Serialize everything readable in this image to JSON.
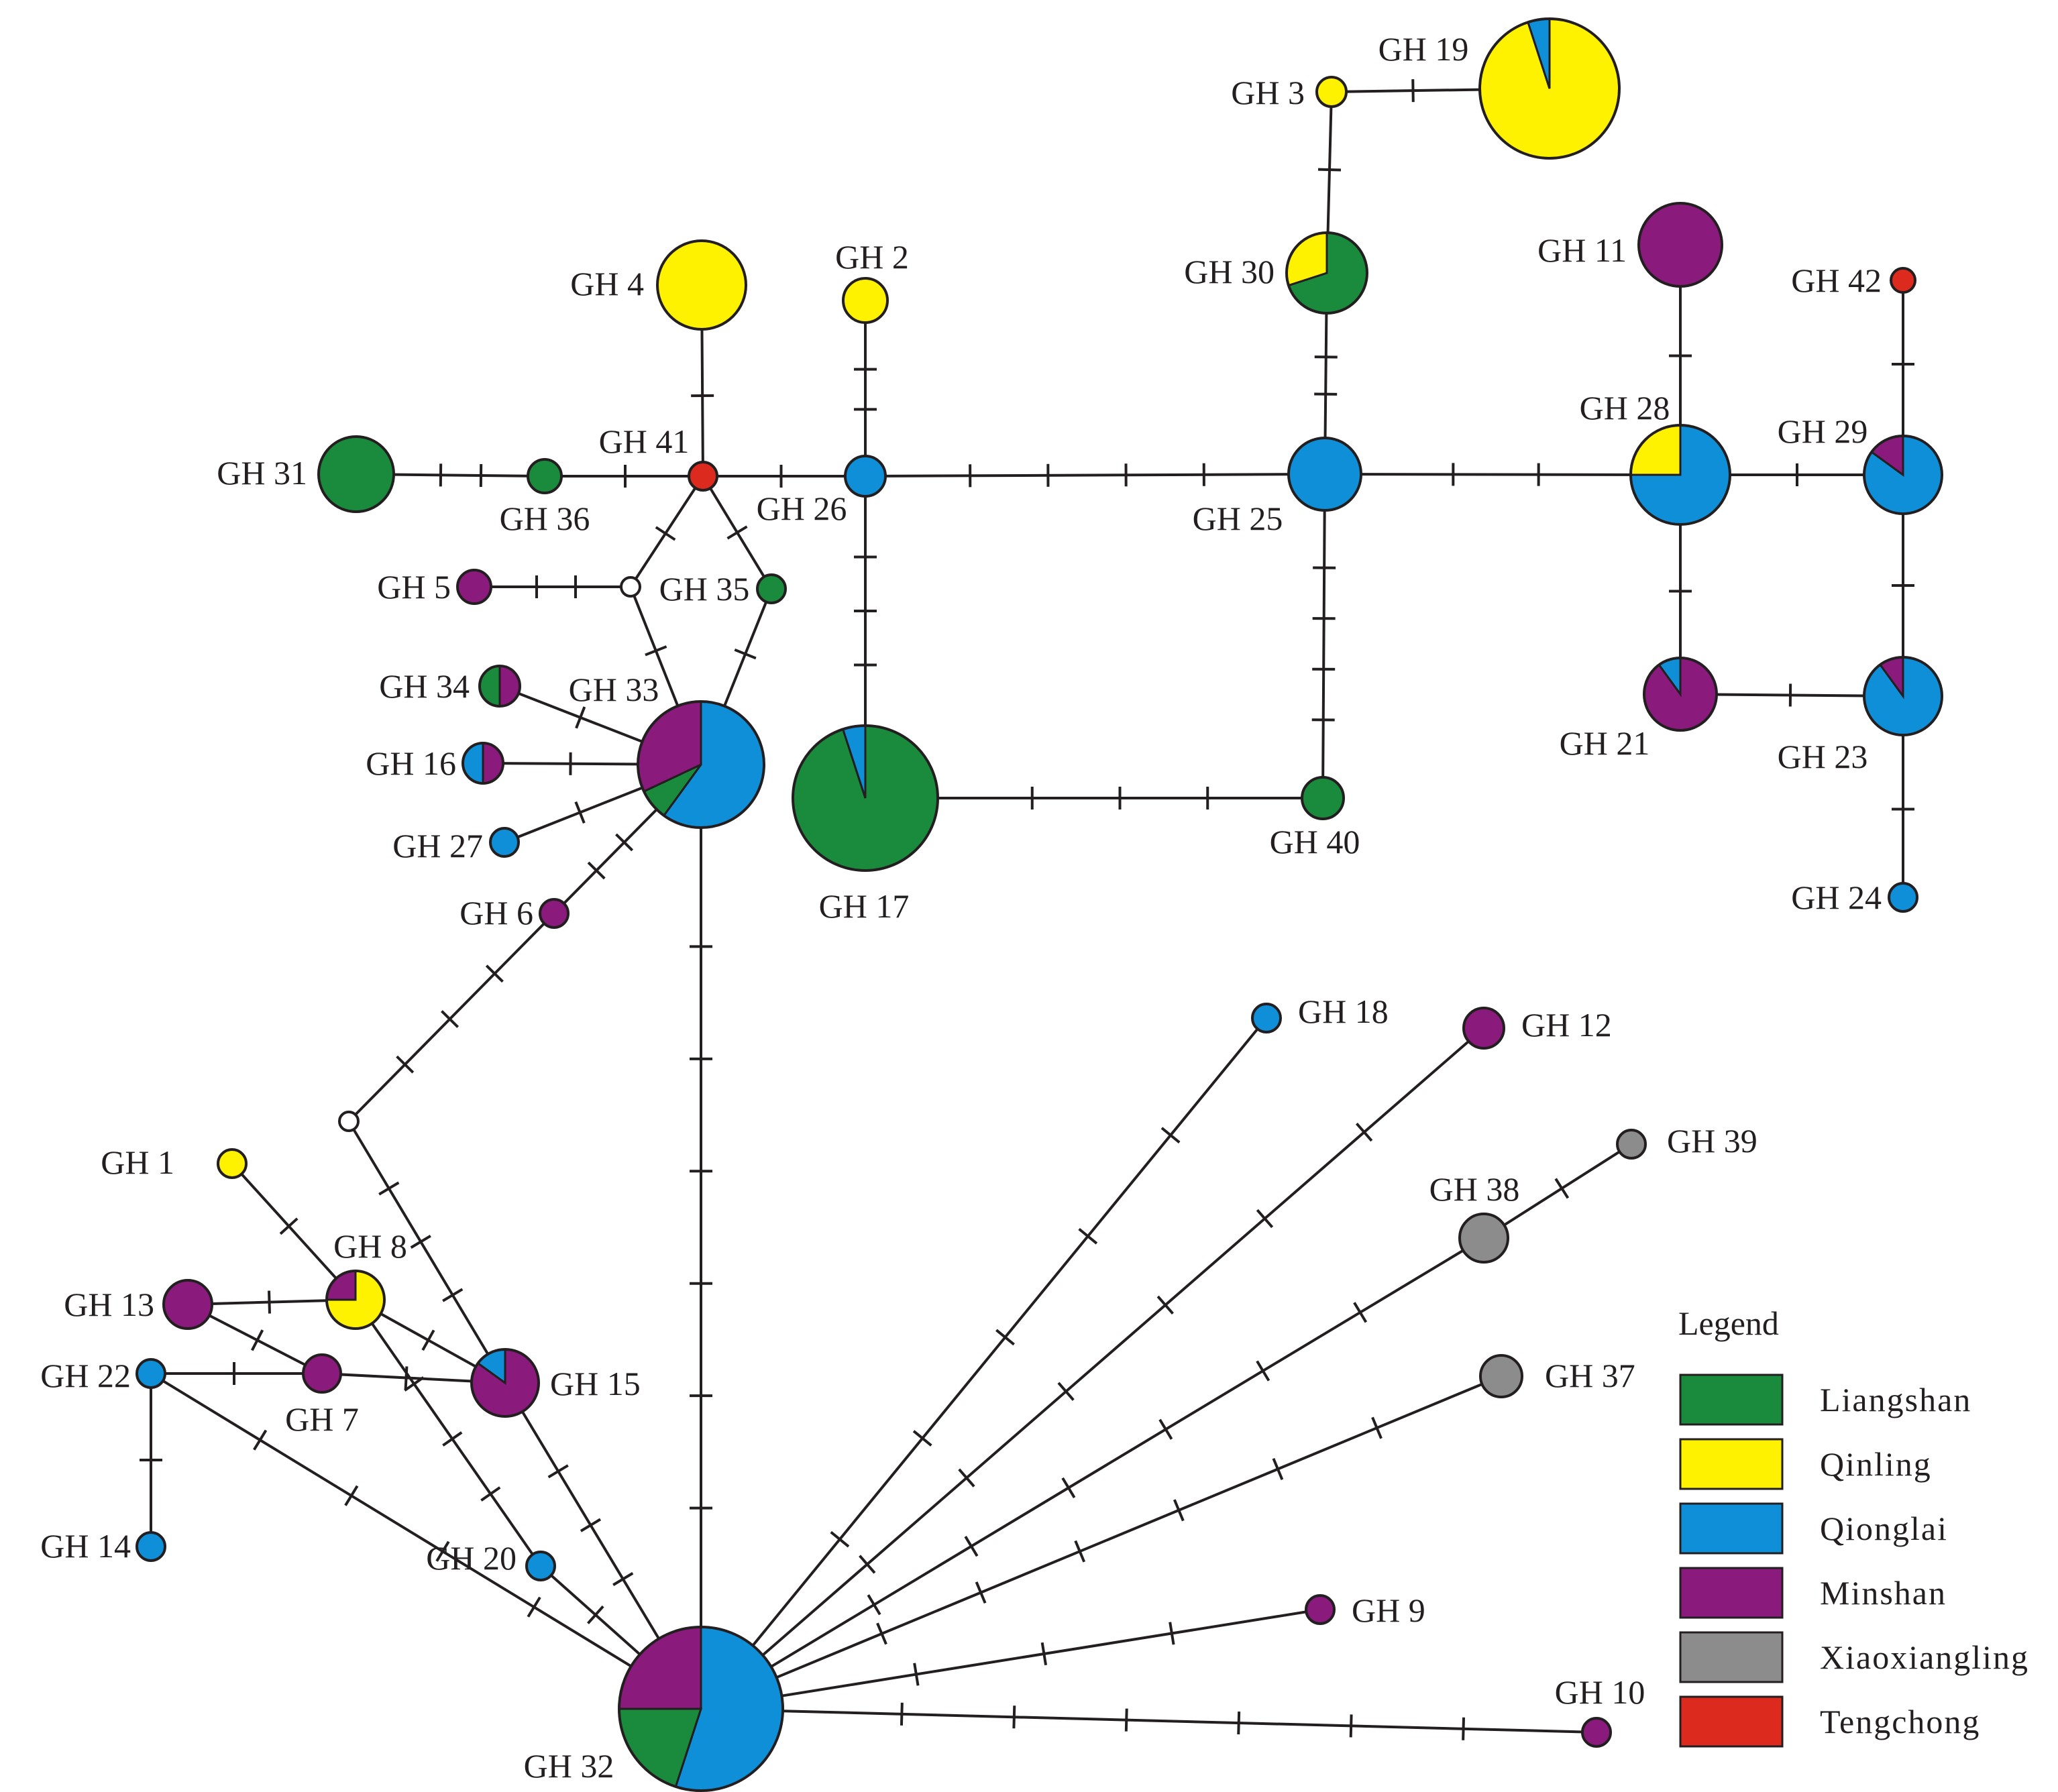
{
  "figure": {
    "type": "haplotype-network"
  },
  "legend": {
    "title": "Legend",
    "items": [
      {
        "name": "Liangshan",
        "color": "#1a8a3c"
      },
      {
        "name": "Qinling",
        "color": "#fff200"
      },
      {
        "name": "Qionglai",
        "color": "#0f8fd8"
      },
      {
        "name": "Minshan",
        "color": "#8b1a7d"
      },
      {
        "name": "Xiaoxiangling",
        "color": "#8c8c8c"
      },
      {
        "name": "Tengchong",
        "color": "#dc2a1f"
      }
    ]
  },
  "median_color": "#ffffff",
  "haplotypes": [
    {
      "id": "GH1",
      "label": "GH 1",
      "composition": {
        "Qinling": 1
      }
    },
    {
      "id": "GH2",
      "label": "GH 2",
      "composition": {
        "Qinling": 1
      }
    },
    {
      "id": "GH3",
      "label": "GH 3",
      "composition": {
        "Qinling": 1
      }
    },
    {
      "id": "GH4",
      "label": "GH 4",
      "composition": {
        "Qinling": 1
      }
    },
    {
      "id": "GH5",
      "label": "GH 5",
      "composition": {
        "Minshan": 1
      }
    },
    {
      "id": "GH6",
      "label": "GH 6",
      "composition": {
        "Minshan": 1
      }
    },
    {
      "id": "GH7",
      "label": "GH 7",
      "composition": {
        "Minshan": 1
      }
    },
    {
      "id": "GH8",
      "label": "GH 8",
      "composition": {
        "Qinling": 0.75,
        "Minshan": 0.25
      }
    },
    {
      "id": "GH9",
      "label": "GH 9",
      "composition": {
        "Minshan": 1
      }
    },
    {
      "id": "GH10",
      "label": "GH 10",
      "composition": {
        "Minshan": 1
      }
    },
    {
      "id": "GH11",
      "label": "GH 11",
      "composition": {
        "Minshan": 1
      }
    },
    {
      "id": "GH12",
      "label": "GH 12",
      "composition": {
        "Minshan": 1
      }
    },
    {
      "id": "GH13",
      "label": "GH 13",
      "composition": {
        "Minshan": 1
      }
    },
    {
      "id": "GH14",
      "label": "GH 14",
      "composition": {
        "Qionglai": 1
      }
    },
    {
      "id": "GH15",
      "label": "GH 15",
      "composition": {
        "Minshan": 0.85,
        "Qionglai": 0.15
      }
    },
    {
      "id": "GH16",
      "label": "GH 16",
      "composition": {
        "Minshan": 0.5,
        "Qionglai": 0.5
      }
    },
    {
      "id": "GH17",
      "label": "GH 17",
      "composition": {
        "Liangshan": 0.95,
        "Qionglai": 0.05
      }
    },
    {
      "id": "GH18",
      "label": "GH 18",
      "composition": {
        "Qionglai": 1
      }
    },
    {
      "id": "GH19",
      "label": "GH 19",
      "composition": {
        "Qinling": 0.95,
        "Qionglai": 0.05
      }
    },
    {
      "id": "GH20",
      "label": "GH 20",
      "composition": {
        "Qionglai": 1
      }
    },
    {
      "id": "GH21",
      "label": "GH 21",
      "composition": {
        "Minshan": 0.9,
        "Qionglai": 0.1
      }
    },
    {
      "id": "GH22",
      "label": "GH 22",
      "composition": {
        "Qionglai": 1
      }
    },
    {
      "id": "GH23",
      "label": "GH 23",
      "composition": {
        "Qionglai": 0.9,
        "Minshan": 0.1
      }
    },
    {
      "id": "GH24",
      "label": "GH 24",
      "composition": {
        "Qionglai": 1
      }
    },
    {
      "id": "GH25",
      "label": "GH 25",
      "composition": {
        "Qionglai": 1
      }
    },
    {
      "id": "GH26",
      "label": "GH 26",
      "composition": {
        "Qionglai": 1
      }
    },
    {
      "id": "GH27",
      "label": "GH 27",
      "composition": {
        "Qionglai": 1
      }
    },
    {
      "id": "GH28",
      "label": "GH 28",
      "composition": {
        "Qionglai": 0.75,
        "Qinling": 0.25
      }
    },
    {
      "id": "GH29",
      "label": "GH 29",
      "composition": {
        "Qionglai": 0.85,
        "Minshan": 0.15
      }
    },
    {
      "id": "GH30",
      "label": "GH 30",
      "composition": {
        "Liangshan": 0.7,
        "Qinling": 0.3
      }
    },
    {
      "id": "GH31",
      "label": "GH 31",
      "composition": {
        "Liangshan": 1
      }
    },
    {
      "id": "GH32",
      "label": "GH 32",
      "composition": {
        "Qionglai": 0.55,
        "Liangshan": 0.2,
        "Minshan": 0.25
      }
    },
    {
      "id": "GH33",
      "label": "GH 33",
      "composition": {
        "Qionglai": 0.6,
        "Liangshan": 0.08,
        "Minshan": 0.32
      }
    },
    {
      "id": "GH34",
      "label": "GH 34",
      "composition": {
        "Minshan": 0.5,
        "Liangshan": 0.5
      }
    },
    {
      "id": "GH35",
      "label": "GH 35",
      "composition": {
        "Liangshan": 1
      }
    },
    {
      "id": "GH36",
      "label": "GH 36",
      "composition": {
        "Liangshan": 1
      }
    },
    {
      "id": "GH37",
      "label": "GH 37",
      "composition": {
        "Xiaoxiangling": 1
      }
    },
    {
      "id": "GH38",
      "label": "GH 38",
      "composition": {
        "Xiaoxiangling": 1
      }
    },
    {
      "id": "GH39",
      "label": "GH 39",
      "composition": {
        "Xiaoxiangling": 1
      }
    },
    {
      "id": "GH40",
      "label": "GH 40",
      "composition": {
        "Liangshan": 1
      }
    },
    {
      "id": "GH41",
      "label": "GH 41",
      "composition": {
        "Tengchong": 1
      }
    },
    {
      "id": "GH42",
      "label": "GH 42",
      "composition": {
        "Tengchong": 1
      }
    }
  ],
  "median_vectors": [
    {
      "id": "mv1"
    },
    {
      "id": "mv2"
    }
  ],
  "edges": [
    {
      "from": "GH3",
      "to": "GH19",
      "mutations": 1
    },
    {
      "from": "GH3",
      "to": "GH30",
      "mutations": 1
    },
    {
      "from": "GH30",
      "to": "GH25",
      "mutations": 2
    },
    {
      "from": "GH4",
      "to": "GH41",
      "mutations": 1
    },
    {
      "from": "GH2",
      "to": "GH26",
      "mutations": 2
    },
    {
      "from": "GH31",
      "to": "GH36",
      "mutations": 2
    },
    {
      "from": "GH36",
      "to": "GH41",
      "mutations": 1
    },
    {
      "from": "GH41",
      "to": "GH26",
      "mutations": 1
    },
    {
      "from": "GH26",
      "to": "GH25",
      "mutations": 4
    },
    {
      "from": "GH25",
      "to": "GH28",
      "mutations": 2
    },
    {
      "from": "GH28",
      "to": "GH29",
      "mutations": 1
    },
    {
      "from": "GH11",
      "to": "GH28",
      "mutations": 1
    },
    {
      "from": "GH42",
      "to": "GH29",
      "mutations": 1
    },
    {
      "from": "GH28",
      "to": "GH21",
      "mutations": 1
    },
    {
      "from": "GH29",
      "to": "GH23",
      "mutations": 1
    },
    {
      "from": "GH21",
      "to": "GH23",
      "mutations": 1
    },
    {
      "from": "GH23",
      "to": "GH24",
      "mutations": 1
    },
    {
      "from": "GH25",
      "to": "GH40",
      "mutations": 4
    },
    {
      "from": "GH26",
      "to": "GH17",
      "mutations": 3
    },
    {
      "from": "GH17",
      "to": "GH40",
      "mutations": 3
    },
    {
      "from": "GH41",
      "to": "mv1",
      "mutations": 1
    },
    {
      "from": "GH41",
      "to": "GH35",
      "mutations": 1
    },
    {
      "from": "GH5",
      "to": "mv1",
      "mutations": 2
    },
    {
      "from": "mv1",
      "to": "GH33",
      "mutations": 1
    },
    {
      "from": "GH35",
      "to": "GH33",
      "mutations": 1
    },
    {
      "from": "GH34",
      "to": "GH33",
      "mutations": 1
    },
    {
      "from": "GH16",
      "to": "GH33",
      "mutations": 1
    },
    {
      "from": "GH27",
      "to": "GH33",
      "mutations": 1
    },
    {
      "from": "GH6",
      "to": "GH33",
      "mutations": 2
    },
    {
      "from": "GH6",
      "to": "mv2",
      "mutations": 3
    },
    {
      "from": "GH33",
      "to": "GH32",
      "mutations": 6
    },
    {
      "from": "mv2",
      "to": "GH15",
      "mutations": 3
    },
    {
      "from": "GH1",
      "to": "GH8",
      "mutations": 1
    },
    {
      "from": "GH13",
      "to": "GH8",
      "mutations": 1
    },
    {
      "from": "GH13",
      "to": "GH7",
      "mutations": 1
    },
    {
      "from": "GH8",
      "to": "GH15",
      "mutations": 1
    },
    {
      "from": "GH22",
      "to": "GH7",
      "mutations": 1
    },
    {
      "from": "GH7",
      "to": "GH15",
      "mutations": 1
    },
    {
      "from": "GH22",
      "to": "GH14",
      "mutations": 1
    },
    {
      "from": "GH22",
      "to": "GH32",
      "mutations": 4
    },
    {
      "from": "GH8",
      "to": "GH20",
      "mutations": 3
    },
    {
      "from": "GH20",
      "to": "GH32",
      "mutations": 1
    },
    {
      "from": "GH15",
      "to": "GH32",
      "mutations": 3
    },
    {
      "from": "GH18",
      "to": "GH32",
      "mutations": 5
    },
    {
      "from": "GH12",
      "to": "GH32",
      "mutations": 6
    },
    {
      "from": "GH39",
      "to": "GH38",
      "mutations": 1
    },
    {
      "from": "GH38",
      "to": "GH32",
      "mutations": 6
    },
    {
      "from": "GH37",
      "to": "GH32",
      "mutations": 6
    },
    {
      "from": "GH9",
      "to": "GH32",
      "mutations": 3
    },
    {
      "from": "GH10",
      "to": "GH32",
      "mutations": 6
    }
  ]
}
